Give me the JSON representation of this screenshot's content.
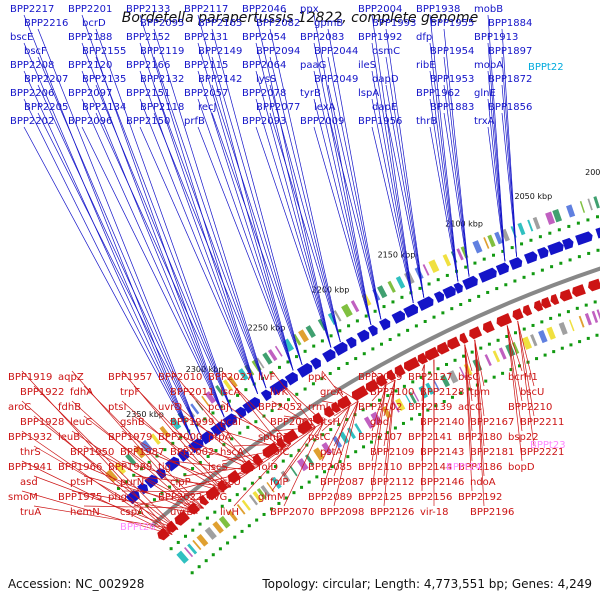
{
  "title": "Bordetella parapertussis 12822, complete genome",
  "footer": {
    "accession": "Accession: NC_002928",
    "topology": "Topology: circular; Length: 4,773,551 bp; Genes: 4,249"
  },
  "colors": {
    "plus_strand": "#1414c8",
    "minus_strand": "#cc1414",
    "rna": "#00aadd",
    "pseudogene": "#ff88ff",
    "backbone": "#888888"
  },
  "kbp_ticks": [
    "2000 kbp",
    "2050 kbp",
    "2100 kbp",
    "2150 kbp",
    "2200 kbp",
    "2250 kbp",
    "2300 kbp",
    "2350 kbp"
  ],
  "plus_labels": [
    "BPP2217",
    "BPP2216",
    "bscE",
    "bscF",
    "BPP2208",
    "BPP2207",
    "BPP2206",
    "BPP2205",
    "BPP2202",
    "BPP2201",
    "bcrD",
    "BPP2188",
    "BPP2155",
    "BPP2120",
    "BPP2135",
    "BPP2097",
    "BPP2134",
    "BPP2096",
    "BPP2133",
    "BPP2095",
    "BPP2152",
    "BPP2119",
    "BPP2166",
    "BPP2132",
    "BPP2151",
    "BPP2118",
    "BPP2150",
    "BPP2117",
    "BPP2165",
    "BPP2131",
    "BPP2149",
    "BPP2115",
    "BPP2142",
    "BPP2057",
    "recJ",
    "prfB",
    "BPP2046",
    "BPP2082",
    "BPP2054",
    "BPP2094",
    "BPP2064",
    "lysS",
    "BPP2078",
    "BPP2077",
    "BPP2093",
    "ppx",
    "gpmB",
    "BPP2083",
    "BPP2044",
    "paaG",
    "BPP2049",
    "tyrB",
    "lexA",
    "BPP2009",
    "BPP2004",
    "BPP1993",
    "BPP1992",
    "osmC",
    "ileS",
    "dapD",
    "lspA",
    "dapE",
    "BPP1956",
    "BPP1938",
    "BPP1955",
    "dfp",
    "BPP1954",
    "ribE",
    "BPP1953",
    "BPP1962",
    "BPP1883",
    "thrB",
    "mobB",
    "BPP1884",
    "BPP1913",
    "BPP1897",
    "mobA",
    "BPP1872",
    "glnE",
    "BPP1856",
    "trxA"
  ],
  "rna_labels": [
    "BPPt22"
  ],
  "minus_labels": [
    "BPP1919",
    "BPP1922",
    "aroC",
    "BPP1928",
    "BPP1932",
    "thrS",
    "BPP1941",
    "asd",
    "smoM",
    "truA",
    "aqpZ",
    "fdhA",
    "fdhB",
    "leuC",
    "leuB",
    "BPP1950",
    "BPP1966",
    "ptsH",
    "BPP1975",
    "hemN",
    "BPP1957",
    "trpF",
    "ptsI",
    "gshB",
    "BPP1979",
    "BPP1987",
    "BPP1989",
    "purN",
    "phg",
    "cspA",
    "BPP2010",
    "BPP2011",
    "uvrD",
    "BPP1999",
    "BPP2000",
    "BPP2002",
    "tig",
    "clpP",
    "BPP2022",
    "uvrB",
    "BPP2027",
    "iscA",
    "pcaJ",
    "pcaI",
    "ptpA",
    "hscA",
    "iscS",
    "iscU",
    "livG",
    "livH",
    "livF",
    "livK",
    "BPP2052",
    "BPP2061",
    "sphB3",
    "folC",
    "folD",
    "folP",
    "glmM",
    "BPP2070",
    "ppk",
    "greA",
    "rrmJ",
    "ftsH",
    "pstC",
    "pstA",
    "BPP2085",
    "BPP2087",
    "BPP2089",
    "BPP2098",
    "BPP2099",
    "BPP2100",
    "BPP2102",
    "gbd",
    "BPP2107",
    "BPP2109",
    "BPP2110",
    "BPP2112",
    "BPP2125",
    "BPP2126",
    "BPP2127",
    "BPP2128",
    "BPP2139",
    "BPP2140",
    "BPP2141",
    "BPP2143",
    "BPP2144",
    "BPP2146",
    "BPP2156",
    "vir-18",
    "bisC",
    "tpm",
    "accC",
    "BPP2167",
    "BPP2180",
    "BPP2181",
    "BPP2186",
    "ndoA",
    "BPP2192",
    "BPP2196",
    "bcrH1",
    "bscU",
    "BPP2210",
    "BPP2211",
    "bsp22",
    "BPP2221",
    "bopD"
  ],
  "rna_minus_labels": [
    "BPPt23",
    "BPPt24"
  ],
  "pseudo_labels": [
    "BPPt26"
  ]
}
